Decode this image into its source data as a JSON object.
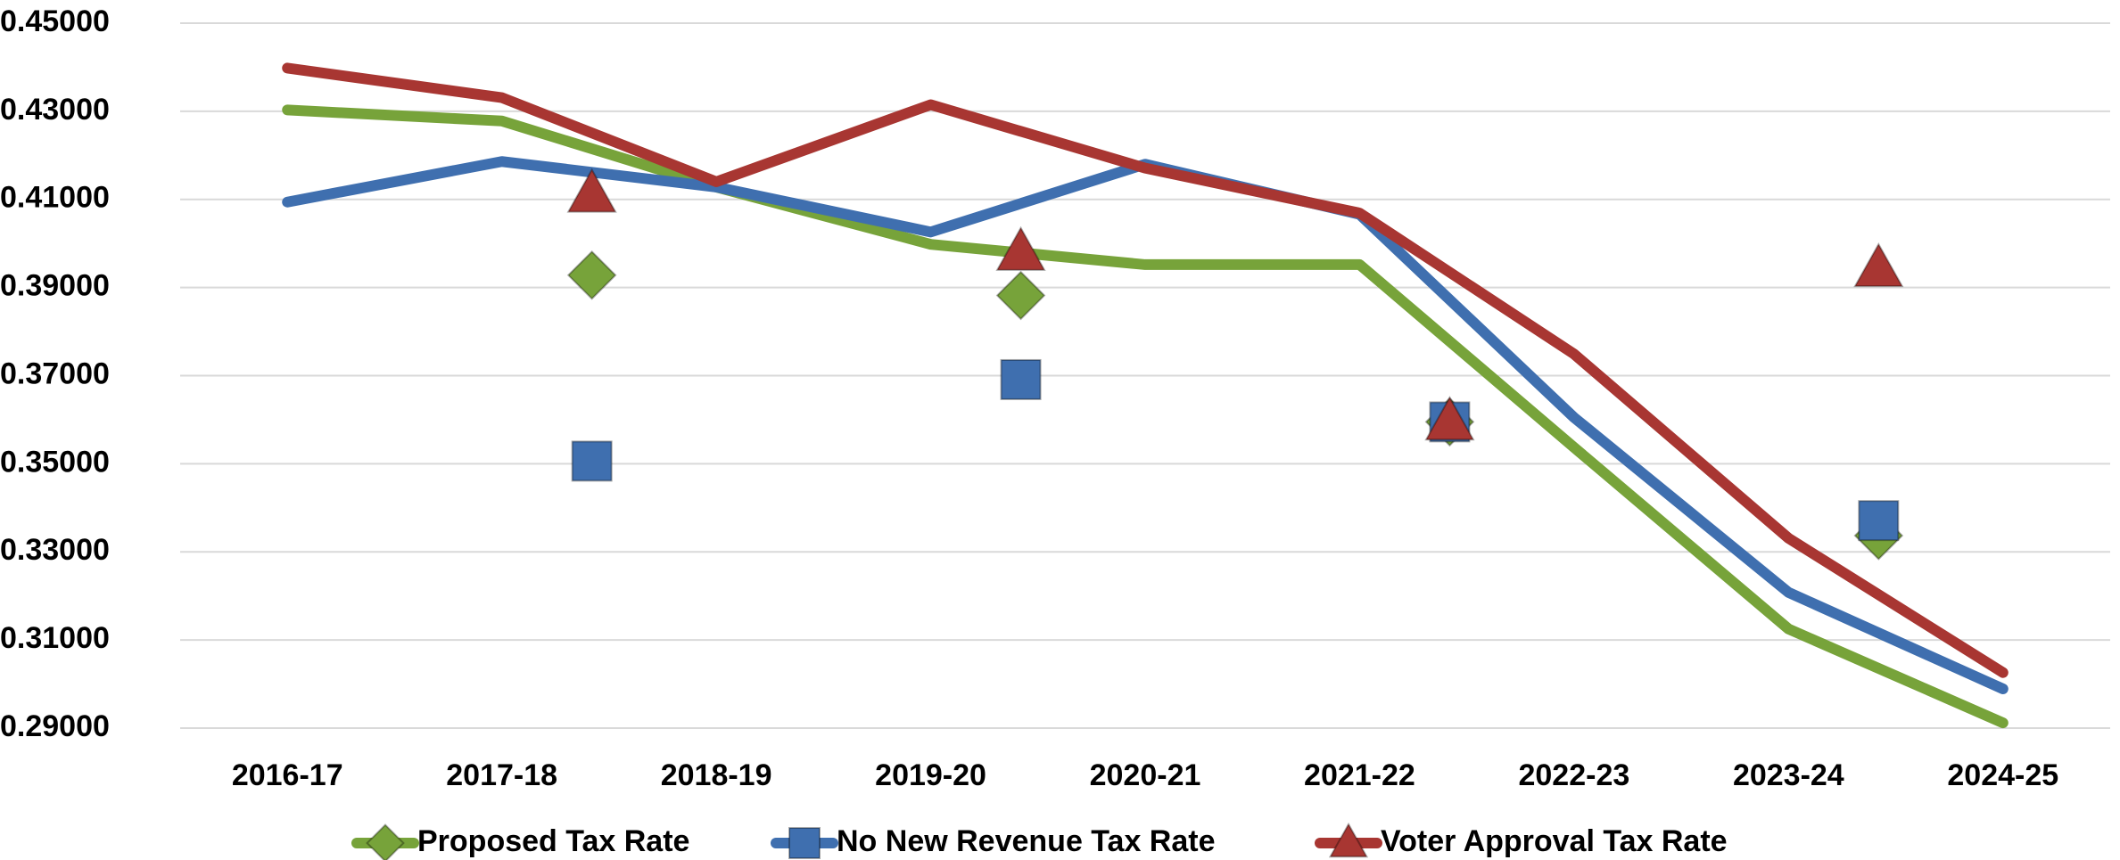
{
  "chart_data": {
    "type": "line",
    "categories": [
      "2016-17",
      "2017-18",
      "2018-19",
      "2019-20",
      "2020-21",
      "2021-22",
      "2022-23",
      "2023-24",
      "2024-25"
    ],
    "ylim": [
      0.29,
      0.45
    ],
    "yticks": [
      {
        "value": 0.29,
        "label": "0.29000"
      },
      {
        "value": 0.31,
        "label": "0.31000"
      },
      {
        "value": 0.33,
        "label": "0.33000"
      },
      {
        "value": 0.35,
        "label": "0.35000"
      },
      {
        "value": 0.37,
        "label": "0.37000"
      },
      {
        "value": 0.39,
        "label": "0.39000"
      },
      {
        "value": 0.41,
        "label": "0.41000"
      },
      {
        "value": 0.43,
        "label": "0.43000"
      },
      {
        "value": 0.45,
        "label": "0.45000"
      }
    ],
    "grid": true,
    "legend": "bottom",
    "marker_x": [
      1.42,
      3.42,
      5.42,
      7.42
    ],
    "series": [
      {
        "name": "Proposed Tax Rate",
        "color": "#77a33a",
        "marker": "diamond",
        "values": [
          0.4303,
          0.4278,
          0.4128,
          0.3998,
          0.3952,
          0.3952,
          0.3537,
          0.3125,
          0.2912
        ],
        "marker_values": [
          0.3928,
          0.3882,
          0.3595,
          0.3337
        ]
      },
      {
        "name": "No New Revenue Tax Rate",
        "color": "#3f6faf",
        "marker": "square",
        "values": [
          0.4094,
          0.4186,
          0.4128,
          0.4026,
          0.418,
          0.4066,
          0.3605,
          0.3208,
          0.2989
        ],
        "marker_values": [
          0.3506,
          0.3691,
          0.3595,
          0.3371
        ]
      },
      {
        "name": "Voter Approval Tax Rate",
        "color": "#a83632",
        "marker": "triangle",
        "values": [
          0.4398,
          0.4331,
          0.414,
          0.4315,
          0.4171,
          0.4069,
          0.3749,
          0.3331,
          0.3026
        ],
        "marker_values": [
          0.4112,
          0.398,
          0.3595,
          0.3943
        ]
      }
    ]
  }
}
